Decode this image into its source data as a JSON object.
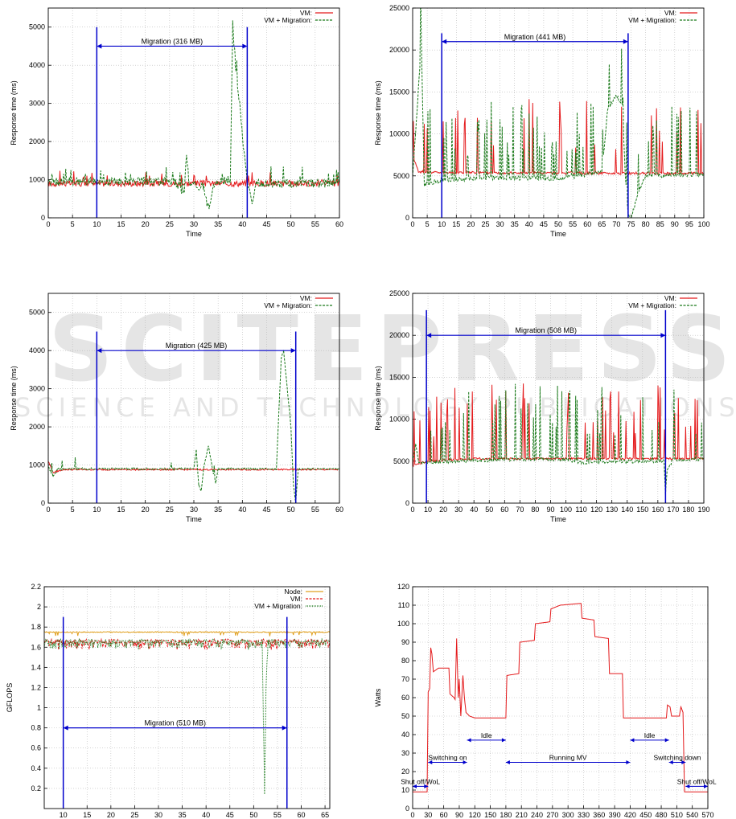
{
  "watermark": {
    "main": "SCITEPRESS",
    "sub": "SCIENCE AND TECHNOLOGY PUBLICATIONS"
  },
  "chart_data": [
    {
      "id": "p1",
      "type": "line",
      "xlabel": "Time",
      "ylabel": "Response time (ms)",
      "xlim": [
        0,
        60
      ],
      "ylim": [
        0,
        5500
      ],
      "xticks": [
        0,
        5,
        10,
        15,
        20,
        25,
        30,
        35,
        40,
        45,
        50,
        55,
        60
      ],
      "yticks": [
        0,
        1000,
        2000,
        3000,
        4000,
        5000
      ],
      "grid": true,
      "legend": "top-right",
      "series": [
        {
          "name": "VM:",
          "color": "#e41a1c",
          "style": "solid",
          "noise": 80,
          "spike_rate": 0.05,
          "spike_amp": 350,
          "points": [
            [
              0,
              900
            ],
            [
              60,
              900
            ]
          ]
        },
        {
          "name": "VM + Migration:",
          "color": "#1b7a1b",
          "style": "dashed",
          "noise": 110,
          "spike_rate": 0.07,
          "spike_amp": 450,
          "points": [
            [
              0,
              950
            ],
            [
              26,
              950
            ],
            [
              28,
              650
            ],
            [
              28.5,
              1700
            ],
            [
              29,
              900
            ],
            [
              32,
              800
            ],
            [
              33,
              200
            ],
            [
              34,
              900
            ],
            [
              37.5,
              1000
            ],
            [
              38,
              5100
            ],
            [
              38.5,
              4000
            ],
            [
              39,
              3500
            ],
            [
              41,
              900
            ],
            [
              42,
              400
            ],
            [
              43,
              900
            ],
            [
              60,
              900
            ]
          ]
        }
      ],
      "migration": {
        "label": "Migration (316 MB)",
        "start": 10,
        "end": 41,
        "line_top": 5000,
        "arrow_y": 4500
      }
    },
    {
      "id": "p2",
      "type": "line",
      "xlabel": "Time",
      "ylabel": "Response time (ms)",
      "xlim": [
        0,
        100
      ],
      "ylim": [
        0,
        25000
      ],
      "xticks": [
        0,
        5,
        10,
        15,
        20,
        25,
        30,
        35,
        40,
        45,
        50,
        55,
        60,
        65,
        70,
        75,
        80,
        85,
        90,
        95,
        100
      ],
      "yticks": [
        0,
        5000,
        10000,
        15000,
        20000,
        25000
      ],
      "grid": true,
      "legend": "top-right",
      "series": [
        {
          "name": "VM:",
          "color": "#e41a1c",
          "style": "solid",
          "noise": 150,
          "spike_rate": 0.07,
          "spike_amp": 9000,
          "points": [
            [
              0,
              7500
            ],
            [
              2,
              5500
            ],
            [
              10,
              5400
            ],
            [
              75,
              5300
            ],
            [
              100,
              5300
            ]
          ]
        },
        {
          "name": "VM + Migration:",
          "color": "#1b7a1b",
          "style": "dashed",
          "noise": 250,
          "spike_rate": 0.18,
          "spike_amp": 9000,
          "points": [
            [
              0,
              5000
            ],
            [
              3,
              20500
            ],
            [
              4,
              4000
            ],
            [
              10,
              4500
            ],
            [
              30,
              4800
            ],
            [
              50,
              4600
            ],
            [
              65,
              5500
            ],
            [
              67,
              13000
            ],
            [
              70,
              14500
            ],
            [
              72,
              13500
            ],
            [
              73,
              5000
            ],
            [
              74,
              300
            ],
            [
              75,
              0
            ],
            [
              77,
              2500
            ],
            [
              80,
              5000
            ],
            [
              100,
              5200
            ]
          ]
        }
      ],
      "migration": {
        "label": "Migration (441 MB)",
        "start": 10,
        "end": 74,
        "line_top": 22000,
        "arrow_y": 21000
      }
    },
    {
      "id": "p3",
      "type": "line",
      "xlabel": "Time",
      "ylabel": "Response time (ms)",
      "xlim": [
        0,
        60
      ],
      "ylim": [
        0,
        5500
      ],
      "xticks": [
        0,
        5,
        10,
        15,
        20,
        25,
        30,
        35,
        40,
        45,
        50,
        55,
        60
      ],
      "yticks": [
        0,
        1000,
        2000,
        3000,
        4000,
        5000
      ],
      "grid": true,
      "legend": "top-right",
      "series": [
        {
          "name": "VM:",
          "color": "#e41a1c",
          "style": "solid",
          "noise": 20,
          "spike_rate": 0.0,
          "spike_amp": 0,
          "points": [
            [
              0,
              1100
            ],
            [
              1,
              800
            ],
            [
              3,
              880
            ],
            [
              60,
              880
            ]
          ]
        },
        {
          "name": "VM + Migration:",
          "color": "#1b7a1b",
          "style": "dashed",
          "noise": 25,
          "spike_rate": 0.03,
          "spike_amp": 300,
          "points": [
            [
              0,
              950
            ],
            [
              1,
              700
            ],
            [
              2,
              900
            ],
            [
              30,
              900
            ],
            [
              30.5,
              1400
            ],
            [
              31,
              500
            ],
            [
              31.5,
              300
            ],
            [
              32,
              900
            ],
            [
              33,
              1500
            ],
            [
              34,
              800
            ],
            [
              34.5,
              500
            ],
            [
              35,
              900
            ],
            [
              47,
              900
            ],
            [
              48,
              3800
            ],
            [
              48.5,
              4000
            ],
            [
              50,
              2000
            ],
            [
              50.5,
              500
            ],
            [
              51,
              0
            ],
            [
              51.5,
              900
            ],
            [
              60,
              900
            ]
          ]
        }
      ],
      "migration": {
        "label": "Migration (425 MB)",
        "start": 10,
        "end": 51,
        "line_top": 4500,
        "arrow_y": 4000
      }
    },
    {
      "id": "p4",
      "type": "line",
      "xlabel": "Time",
      "ylabel": "Response time (ms)",
      "xlim": [
        0,
        190
      ],
      "ylim": [
        0,
        25000
      ],
      "xticks": [
        0,
        10,
        20,
        30,
        40,
        50,
        60,
        70,
        80,
        90,
        100,
        110,
        120,
        130,
        140,
        150,
        160,
        170,
        180,
        190
      ],
      "yticks": [
        0,
        5000,
        10000,
        15000,
        20000,
        25000
      ],
      "grid": true,
      "legend": "top-right",
      "series": [
        {
          "name": "VM:",
          "color": "#e41a1c",
          "style": "solid",
          "noise": 120,
          "spike_rate": 0.1,
          "spike_amp": 9000,
          "points": [
            [
              0,
              4500
            ],
            [
              10,
              5000
            ],
            [
              40,
              5300
            ],
            [
              190,
              5300
            ]
          ]
        },
        {
          "name": "VM + Migration:",
          "color": "#1b7a1b",
          "style": "dashed",
          "noise": 200,
          "spike_rate": 0.1,
          "spike_amp": 9000,
          "points": [
            [
              0,
              4800
            ],
            [
              2,
              7000
            ],
            [
              4,
              4800
            ],
            [
              60,
              5200
            ],
            [
              100,
              5200
            ],
            [
              110,
              4800
            ],
            [
              150,
              5000
            ],
            [
              164,
              5000
            ],
            [
              165,
              1000
            ],
            [
              166,
              4000
            ],
            [
              170,
              5200
            ],
            [
              190,
              5200
            ]
          ]
        }
      ],
      "migration": {
        "label": "Migration (508 MB)",
        "start": 9,
        "end": 165,
        "line_top": 23000,
        "arrow_y": 20000
      }
    },
    {
      "id": "p5",
      "type": "line",
      "xlabel": "Time",
      "ylabel": "GFLOPS",
      "xlim": [
        6,
        66
      ],
      "ylim": [
        0,
        2.2
      ],
      "xticks": [
        10,
        15,
        20,
        25,
        30,
        35,
        40,
        45,
        50,
        55,
        60,
        65
      ],
      "yticks": [
        0.2,
        0.4,
        0.6,
        0.8,
        1,
        1.2,
        1.4,
        1.6,
        1.8,
        2,
        2.2
      ],
      "grid": true,
      "legend": "top-right",
      "series": [
        {
          "name": "Node:",
          "color": "#e0a020",
          "style": "solid",
          "noise": 0.005,
          "spike_rate": 0.05,
          "spike_amp": -0.04,
          "points": [
            [
              6,
              1.75
            ],
            [
              66,
              1.75
            ]
          ]
        },
        {
          "name": "VM:",
          "color": "#e41a1c",
          "style": "dashed",
          "noise": 0.02,
          "spike_rate": 0.3,
          "spike_amp": -0.07,
          "points": [
            [
              6,
              1.66
            ],
            [
              66,
              1.66
            ]
          ]
        },
        {
          "name": "VM + Migration:",
          "color": "#1b7a1b",
          "style": "dotted",
          "noise": 0.02,
          "spike_rate": 0.3,
          "spike_amp": -0.07,
          "points": [
            [
              6,
              1.66
            ],
            [
              51.8,
              1.66
            ],
            [
              52,
              1.0
            ],
            [
              52.3,
              0.15
            ],
            [
              52.6,
              1.2
            ],
            [
              53,
              1.66
            ],
            [
              66,
              1.66
            ]
          ]
        }
      ],
      "migration": {
        "label": "Migration (510 MB)",
        "start": 10,
        "end": 57,
        "line_top": 1.9,
        "arrow_y": 0.8
      }
    },
    {
      "id": "p6",
      "type": "line",
      "xlabel": "Time",
      "ylabel": "Watts",
      "xlim": [
        0,
        570
      ],
      "ylim": [
        0,
        120
      ],
      "xticks": [
        0,
        30,
        60,
        90,
        120,
        150,
        180,
        210,
        240,
        270,
        300,
        330,
        360,
        390,
        420,
        450,
        480,
        510,
        540,
        570
      ],
      "yticks": [
        0,
        10,
        20,
        30,
        40,
        50,
        60,
        70,
        80,
        90,
        100,
        110,
        120
      ],
      "grid": true,
      "legend": "none",
      "series": [
        {
          "name": "",
          "color": "#e41a1c",
          "style": "solid",
          "noise": 0,
          "spike_rate": 0,
          "spike_amp": 0,
          "points": [
            [
              0,
              9
            ],
            [
              28,
              9
            ],
            [
              30,
              63
            ],
            [
              33,
              65
            ],
            [
              35,
              87
            ],
            [
              37,
              84
            ],
            [
              40,
              74
            ],
            [
              45,
              75
            ],
            [
              50,
              76
            ],
            [
              70,
              76
            ],
            [
              72,
              62
            ],
            [
              80,
              60
            ],
            [
              82,
              59
            ],
            [
              85,
              92
            ],
            [
              88,
              60
            ],
            [
              90,
              70
            ],
            [
              93,
              50
            ],
            [
              97,
              72
            ],
            [
              100,
              60
            ],
            [
              103,
              52
            ],
            [
              110,
              50
            ],
            [
              120,
              49
            ],
            [
              180,
              49
            ],
            [
              182,
              72
            ],
            [
              205,
              73
            ],
            [
              207,
              90
            ],
            [
              235,
              91
            ],
            [
              237,
              100
            ],
            [
              265,
              101
            ],
            [
              267,
              108
            ],
            [
              285,
              110
            ],
            [
              325,
              111
            ],
            [
              327,
              103
            ],
            [
              350,
              102
            ],
            [
              352,
              93
            ],
            [
              378,
              92
            ],
            [
              380,
              73
            ],
            [
              405,
              73
            ],
            [
              407,
              49
            ],
            [
              490,
              49
            ],
            [
              492,
              56
            ],
            [
              497,
              55
            ],
            [
              500,
              50
            ],
            [
              515,
              50
            ],
            [
              518,
              55
            ],
            [
              522,
              52
            ],
            [
              525,
              9
            ],
            [
              570,
              9
            ]
          ]
        }
      ],
      "annotations": [
        {
          "label": "Shut off/WoL",
          "start": 0,
          "end": 30,
          "y": 12
        },
        {
          "label": "Switching on",
          "start": 30,
          "end": 105,
          "y": 25
        },
        {
          "label": "Idle",
          "start": 105,
          "end": 180,
          "y": 37
        },
        {
          "label": "Running MV",
          "start": 180,
          "end": 420,
          "y": 25
        },
        {
          "label": "Idle",
          "start": 420,
          "end": 495,
          "y": 37
        },
        {
          "label": "Switching down",
          "start": 495,
          "end": 527,
          "y": 25
        },
        {
          "label": "Shut off/WoL",
          "start": 527,
          "end": 570,
          "y": 12
        }
      ]
    }
  ]
}
